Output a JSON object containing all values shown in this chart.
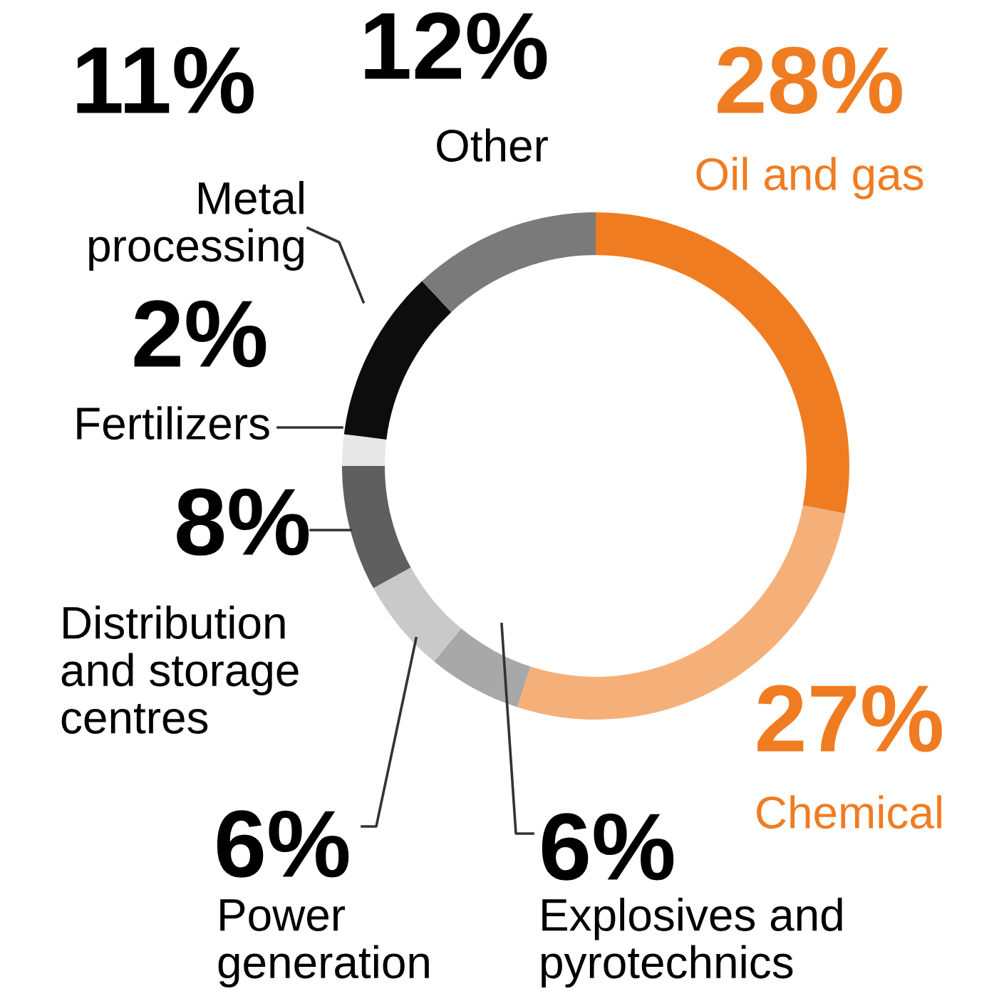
{
  "chart_data": {
    "type": "donut",
    "categories": [
      "Oil and gas",
      "Chemical",
      "Explosives and\npyrotechnics",
      "Power\ngeneration",
      "Distribution\nand storage\ncentres",
      "Fertilizers",
      "Metal\nprocessing",
      "Other"
    ],
    "values": [
      28,
      27,
      6,
      6,
      8,
      2,
      11,
      12
    ],
    "value_labels": [
      "28%",
      "27%",
      "6%",
      "6%",
      "8%",
      "2%",
      "11%",
      "12%"
    ],
    "colors": [
      "#f07c22",
      "#f5b07a",
      "#a8a8a8",
      "#c9c9c9",
      "#5f5f5f",
      "#e8e8e8",
      "#0d0d0d",
      "#7a7a7a"
    ]
  }
}
